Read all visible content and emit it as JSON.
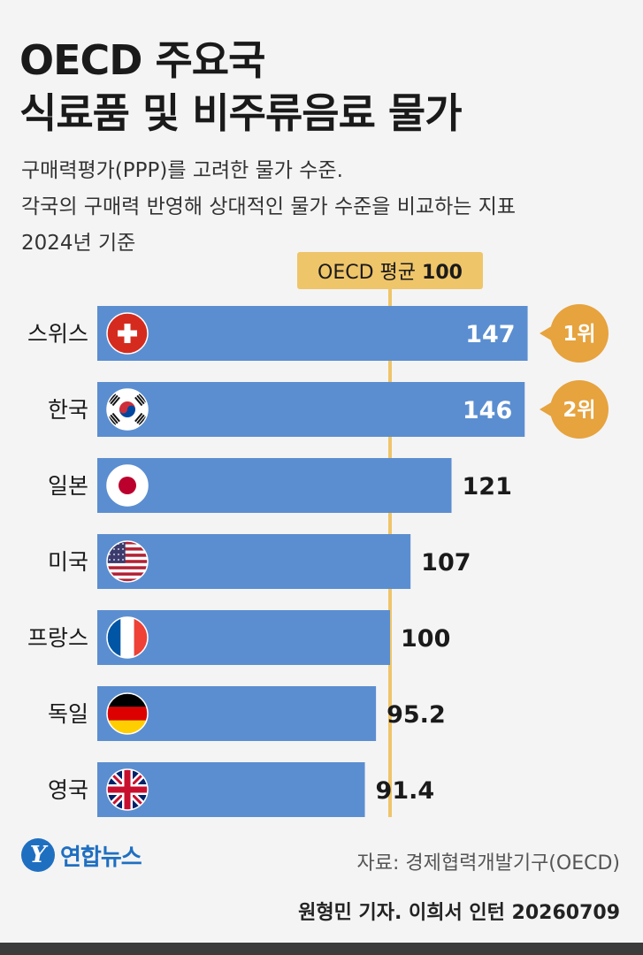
{
  "title_lines": [
    "OECD 주요국",
    "식료품 및 비주류음료 물가"
  ],
  "subtitle_lines": [
    "구매력평가(PPP)를 고려한 물가 수준.",
    "각국의 구매력 반영해 상대적인 물가 수준을 비교하는 지표",
    "2024년 기준"
  ],
  "chart_data": {
    "type": "bar",
    "orientation": "horizontal",
    "categories": [
      "스위스",
      "한국",
      "일본",
      "미국",
      "프랑스",
      "독일",
      "영국"
    ],
    "values": [
      147,
      146,
      121,
      107,
      100,
      95.2,
      91.4
    ],
    "value_labels": [
      "147",
      "146",
      "121",
      "107",
      "100",
      "95.2",
      "91.4"
    ],
    "reference_line": {
      "value": 100,
      "label": "OECD 평균",
      "label_value": "100"
    },
    "rank_badges": [
      {
        "category": "스위스",
        "label": "1위"
      },
      {
        "category": "한국",
        "label": "2위"
      }
    ],
    "flag_icons": [
      "swiss-flag-icon",
      "korea-flag-icon",
      "japan-flag-icon",
      "usa-flag-icon",
      "france-flag-icon",
      "germany-flag-icon",
      "uk-flag-icon"
    ],
    "colors": {
      "bar": "#5b8ed0",
      "reference": "#efc56a",
      "badge": "#e6a33e",
      "value_inside": "#ffffff",
      "value_outside": "#1a1a1a"
    }
  },
  "footer": {
    "logo_mark": "Y",
    "logo_text": "연합뉴스",
    "source": "자료: 경제협력개발기구(OECD)",
    "credit": "원형민 기자. 이희서 인턴 20260709"
  }
}
